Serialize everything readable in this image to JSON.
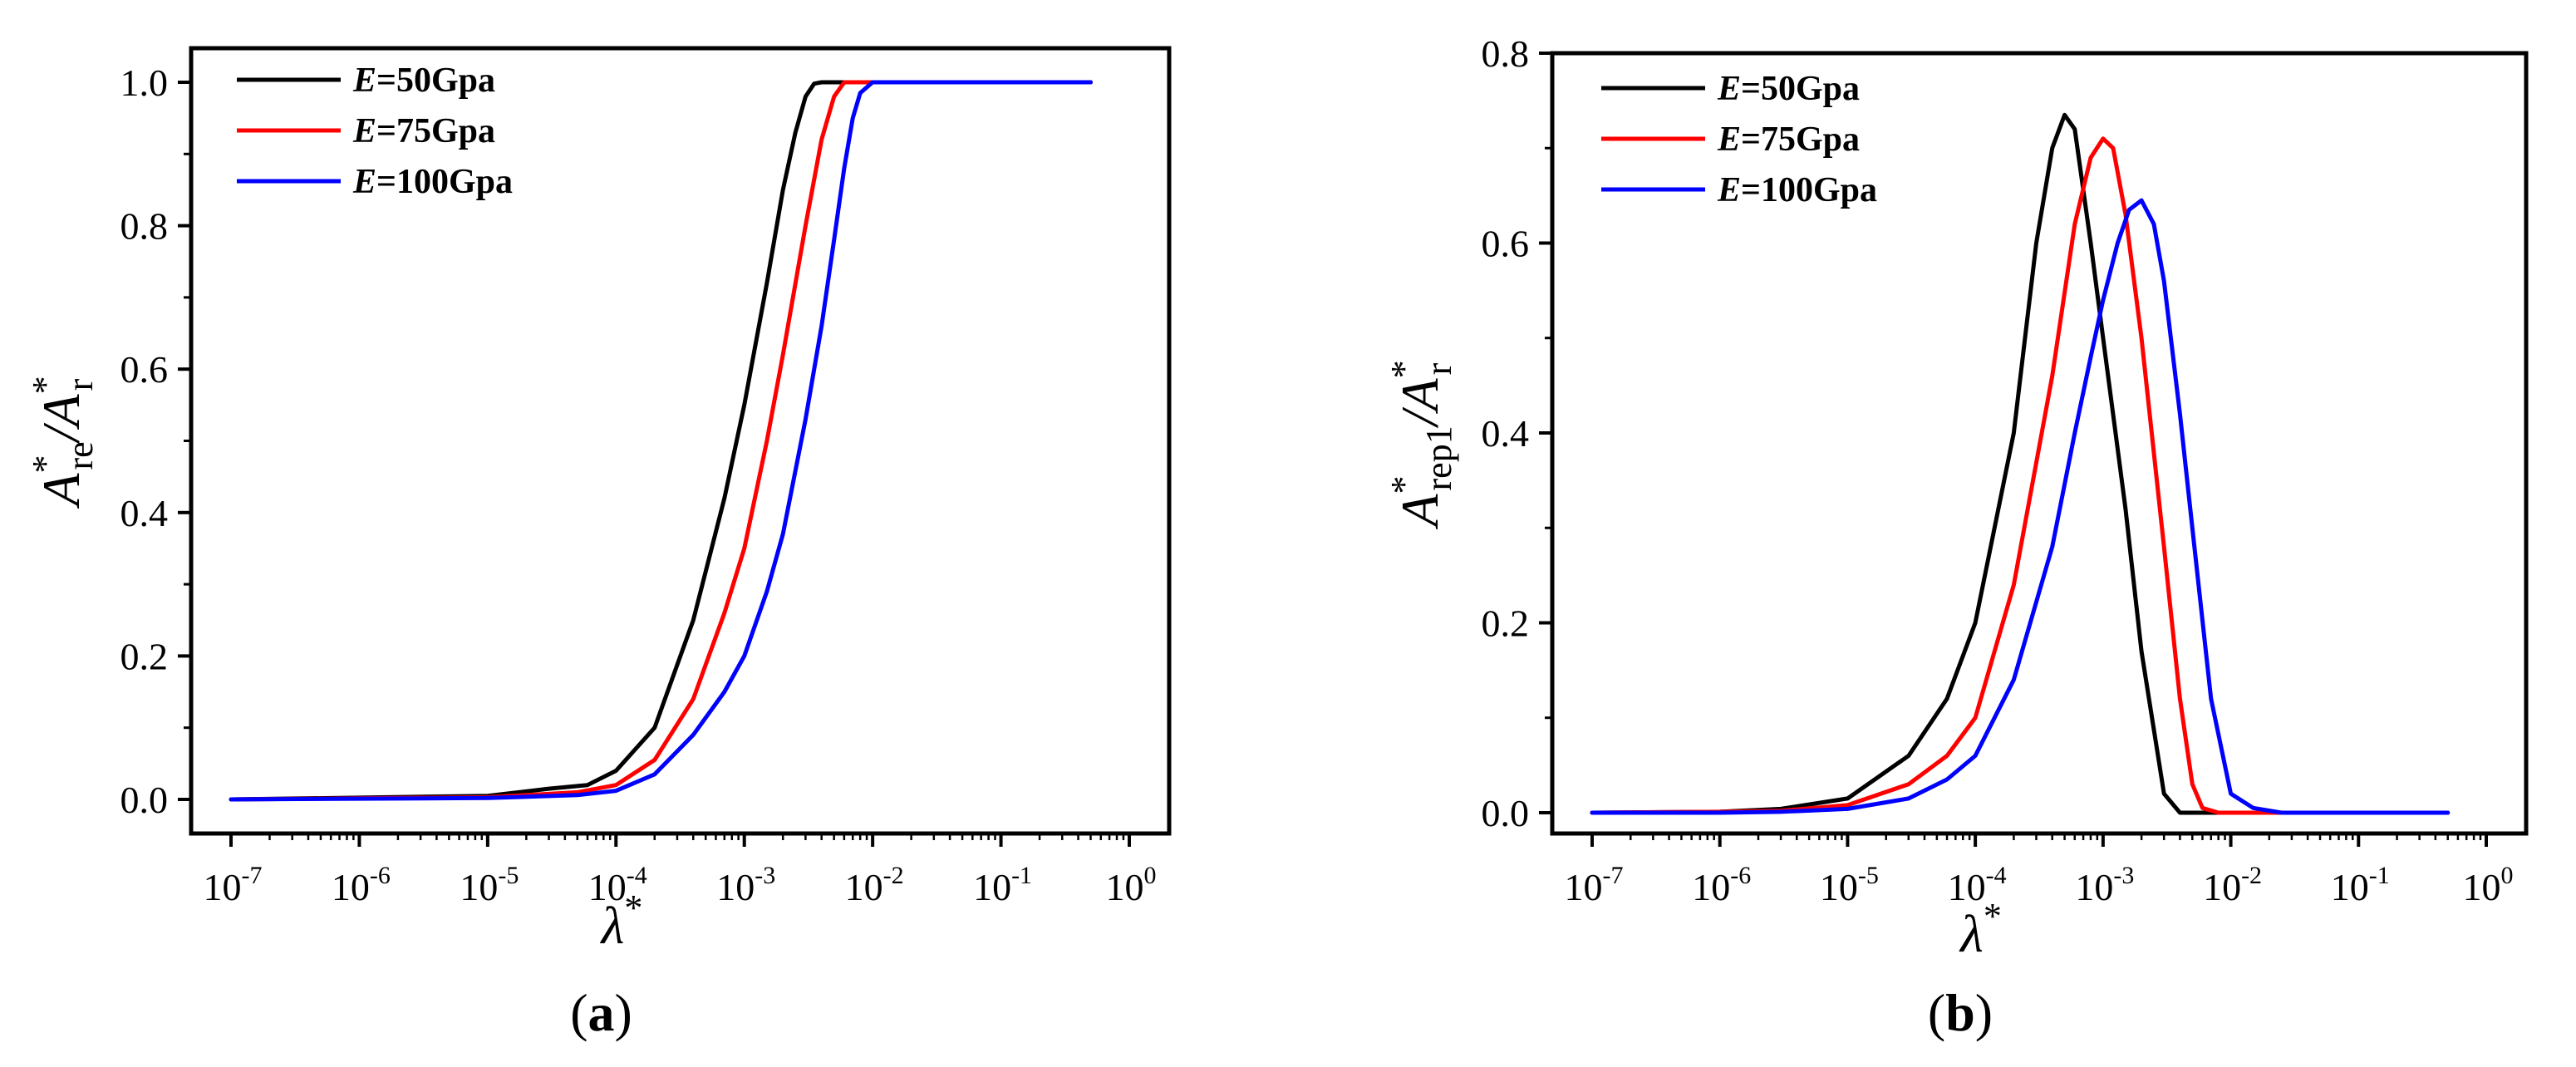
{
  "chart_data": [
    {
      "type": "line",
      "caption_letter": "a",
      "xscale": "log",
      "xlim": [
        1e-07,
        1
      ],
      "ylim": [
        0,
        1.05
      ],
      "xticks": [
        {
          "base": "10",
          "exp": "-7",
          "value": 1e-07
        },
        {
          "base": "10",
          "exp": "-6",
          "value": 1e-06
        },
        {
          "base": "10",
          "exp": "-5",
          "value": 1e-05
        },
        {
          "base": "10",
          "exp": "-4",
          "value": 0.0001
        },
        {
          "base": "10",
          "exp": "-3",
          "value": 0.001
        },
        {
          "base": "10",
          "exp": "-2",
          "value": 0.01
        },
        {
          "base": "10",
          "exp": "-1",
          "value": 0.1
        },
        {
          "base": "10",
          "exp": "0",
          "value": 1
        }
      ],
      "yticks": [
        {
          "label": "0.0",
          "value": 0.0
        },
        {
          "label": "0.2",
          "value": 0.2
        },
        {
          "label": "0.4",
          "value": 0.4
        },
        {
          "label": "0.6",
          "value": 0.6
        },
        {
          "label": "0.8",
          "value": 0.8
        },
        {
          "label": "1.0",
          "value": 1.0
        }
      ],
      "ylabel": {
        "main": "A",
        "sup1": "*",
        "sub1": "re",
        "sep": "/A",
        "sup2": "*",
        "sub2": "r"
      },
      "xlabel": {
        "main": "λ",
        "sup": "*"
      },
      "legend_position": "top-left",
      "series": [
        {
          "e_symbol": "E",
          "name_rest": "=50Gpa",
          "color": "#000000",
          "x": [
            1e-07,
            1e-05,
            3e-05,
            6e-05,
            0.0001,
            0.0002,
            0.0004,
            0.0007,
            0.001,
            0.0015,
            0.002,
            0.0025,
            0.003,
            0.0035,
            0.004,
            0.006,
            0.5
          ],
          "y": [
            0,
            0.005,
            0.015,
            0.02,
            0.04,
            0.1,
            0.25,
            0.42,
            0.55,
            0.72,
            0.85,
            0.93,
            0.98,
            0.998,
            1.0,
            1.0,
            1.0
          ]
        },
        {
          "e_symbol": "E",
          "name_rest": "=75Gpa",
          "color": "#ff0000",
          "x": [
            1e-07,
            1e-05,
            5e-05,
            0.0001,
            0.0002,
            0.0004,
            0.0007,
            0.001,
            0.0015,
            0.002,
            0.003,
            0.004,
            0.005,
            0.006,
            0.008,
            0.5
          ],
          "y": [
            0,
            0.003,
            0.01,
            0.02,
            0.055,
            0.14,
            0.26,
            0.35,
            0.5,
            0.62,
            0.8,
            0.92,
            0.98,
            1.0,
            1.0,
            1.0
          ]
        },
        {
          "e_symbol": "E",
          "name_rest": "=100Gpa",
          "color": "#0000ff",
          "x": [
            1e-07,
            1e-05,
            5e-05,
            0.0001,
            0.0002,
            0.0004,
            0.0007,
            0.001,
            0.0015,
            0.002,
            0.003,
            0.004,
            0.005,
            0.006,
            0.007,
            0.008,
            0.01,
            0.5
          ],
          "y": [
            0,
            0.002,
            0.006,
            0.012,
            0.035,
            0.09,
            0.15,
            0.2,
            0.29,
            0.37,
            0.53,
            0.66,
            0.78,
            0.88,
            0.95,
            0.985,
            1.0,
            1.0
          ]
        }
      ]
    },
    {
      "type": "line",
      "caption_letter": "b",
      "xscale": "log",
      "xlim": [
        1e-07,
        1
      ],
      "ylim": [
        -0.02,
        0.8
      ],
      "xticks": [
        {
          "base": "10",
          "exp": "-7",
          "value": 1e-07
        },
        {
          "base": "10",
          "exp": "-6",
          "value": 1e-06
        },
        {
          "base": "10",
          "exp": "-5",
          "value": 1e-05
        },
        {
          "base": "10",
          "exp": "-4",
          "value": 0.0001
        },
        {
          "base": "10",
          "exp": "-3",
          "value": 0.001
        },
        {
          "base": "10",
          "exp": "-2",
          "value": 0.01
        },
        {
          "base": "10",
          "exp": "-1",
          "value": 0.1
        },
        {
          "base": "10",
          "exp": "0",
          "value": 1
        }
      ],
      "yticks": [
        {
          "label": "0.0",
          "value": 0.0
        },
        {
          "label": "0.2",
          "value": 0.2
        },
        {
          "label": "0.4",
          "value": 0.4
        },
        {
          "label": "0.6",
          "value": 0.6
        },
        {
          "label": "0.8",
          "value": 0.8
        }
      ],
      "ylabel": {
        "main": "A",
        "sup1": "*",
        "sub1": "rep1",
        "sep": "/A",
        "sup2": "*",
        "sub2": "r"
      },
      "xlabel": {
        "main": "λ",
        "sup": "*"
      },
      "legend_position": "top-left",
      "series": [
        {
          "e_symbol": "E",
          "name_rest": "=50Gpa",
          "color": "#000000",
          "x": [
            1e-07,
            1e-06,
            3e-06,
            1e-05,
            3e-05,
            6e-05,
            0.0001,
            0.0002,
            0.0003,
            0.0004,
            0.0005,
            0.0006,
            0.0008,
            0.001,
            0.0015,
            0.002,
            0.003,
            0.004,
            0.005,
            0.5
          ],
          "y": [
            0,
            0.001,
            0.004,
            0.015,
            0.06,
            0.12,
            0.2,
            0.4,
            0.6,
            0.7,
            0.735,
            0.72,
            0.6,
            0.5,
            0.32,
            0.17,
            0.02,
            0.0,
            0.0,
            0.0
          ]
        },
        {
          "e_symbol": "E",
          "name_rest": "=75Gpa",
          "color": "#ff0000",
          "x": [
            1e-07,
            1e-06,
            3e-06,
            1e-05,
            3e-05,
            6e-05,
            0.0001,
            0.0002,
            0.0004,
            0.0006,
            0.0008,
            0.001,
            0.0012,
            0.0015,
            0.002,
            0.003,
            0.004,
            0.005,
            0.006,
            0.008,
            0.5
          ],
          "y": [
            0,
            0.001,
            0.002,
            0.008,
            0.03,
            0.06,
            0.1,
            0.24,
            0.46,
            0.62,
            0.69,
            0.71,
            0.7,
            0.63,
            0.5,
            0.28,
            0.12,
            0.03,
            0.005,
            0.0,
            0.0
          ]
        },
        {
          "e_symbol": "E",
          "name_rest": "=100Gpa",
          "color": "#0000ff",
          "x": [
            1e-07,
            1e-06,
            3e-06,
            1e-05,
            3e-05,
            6e-05,
            0.0001,
            0.0002,
            0.0004,
            0.0006,
            0.0008,
            0.001,
            0.0013,
            0.0016,
            0.002,
            0.0025,
            0.003,
            0.004,
            0.005,
            0.007,
            0.01,
            0.015,
            0.025,
            0.5
          ],
          "y": [
            0,
            0.0,
            0.001,
            0.004,
            0.015,
            0.035,
            0.06,
            0.14,
            0.28,
            0.4,
            0.48,
            0.54,
            0.6,
            0.635,
            0.645,
            0.62,
            0.56,
            0.42,
            0.3,
            0.12,
            0.02,
            0.005,
            0.0,
            0.0
          ]
        }
      ]
    }
  ]
}
